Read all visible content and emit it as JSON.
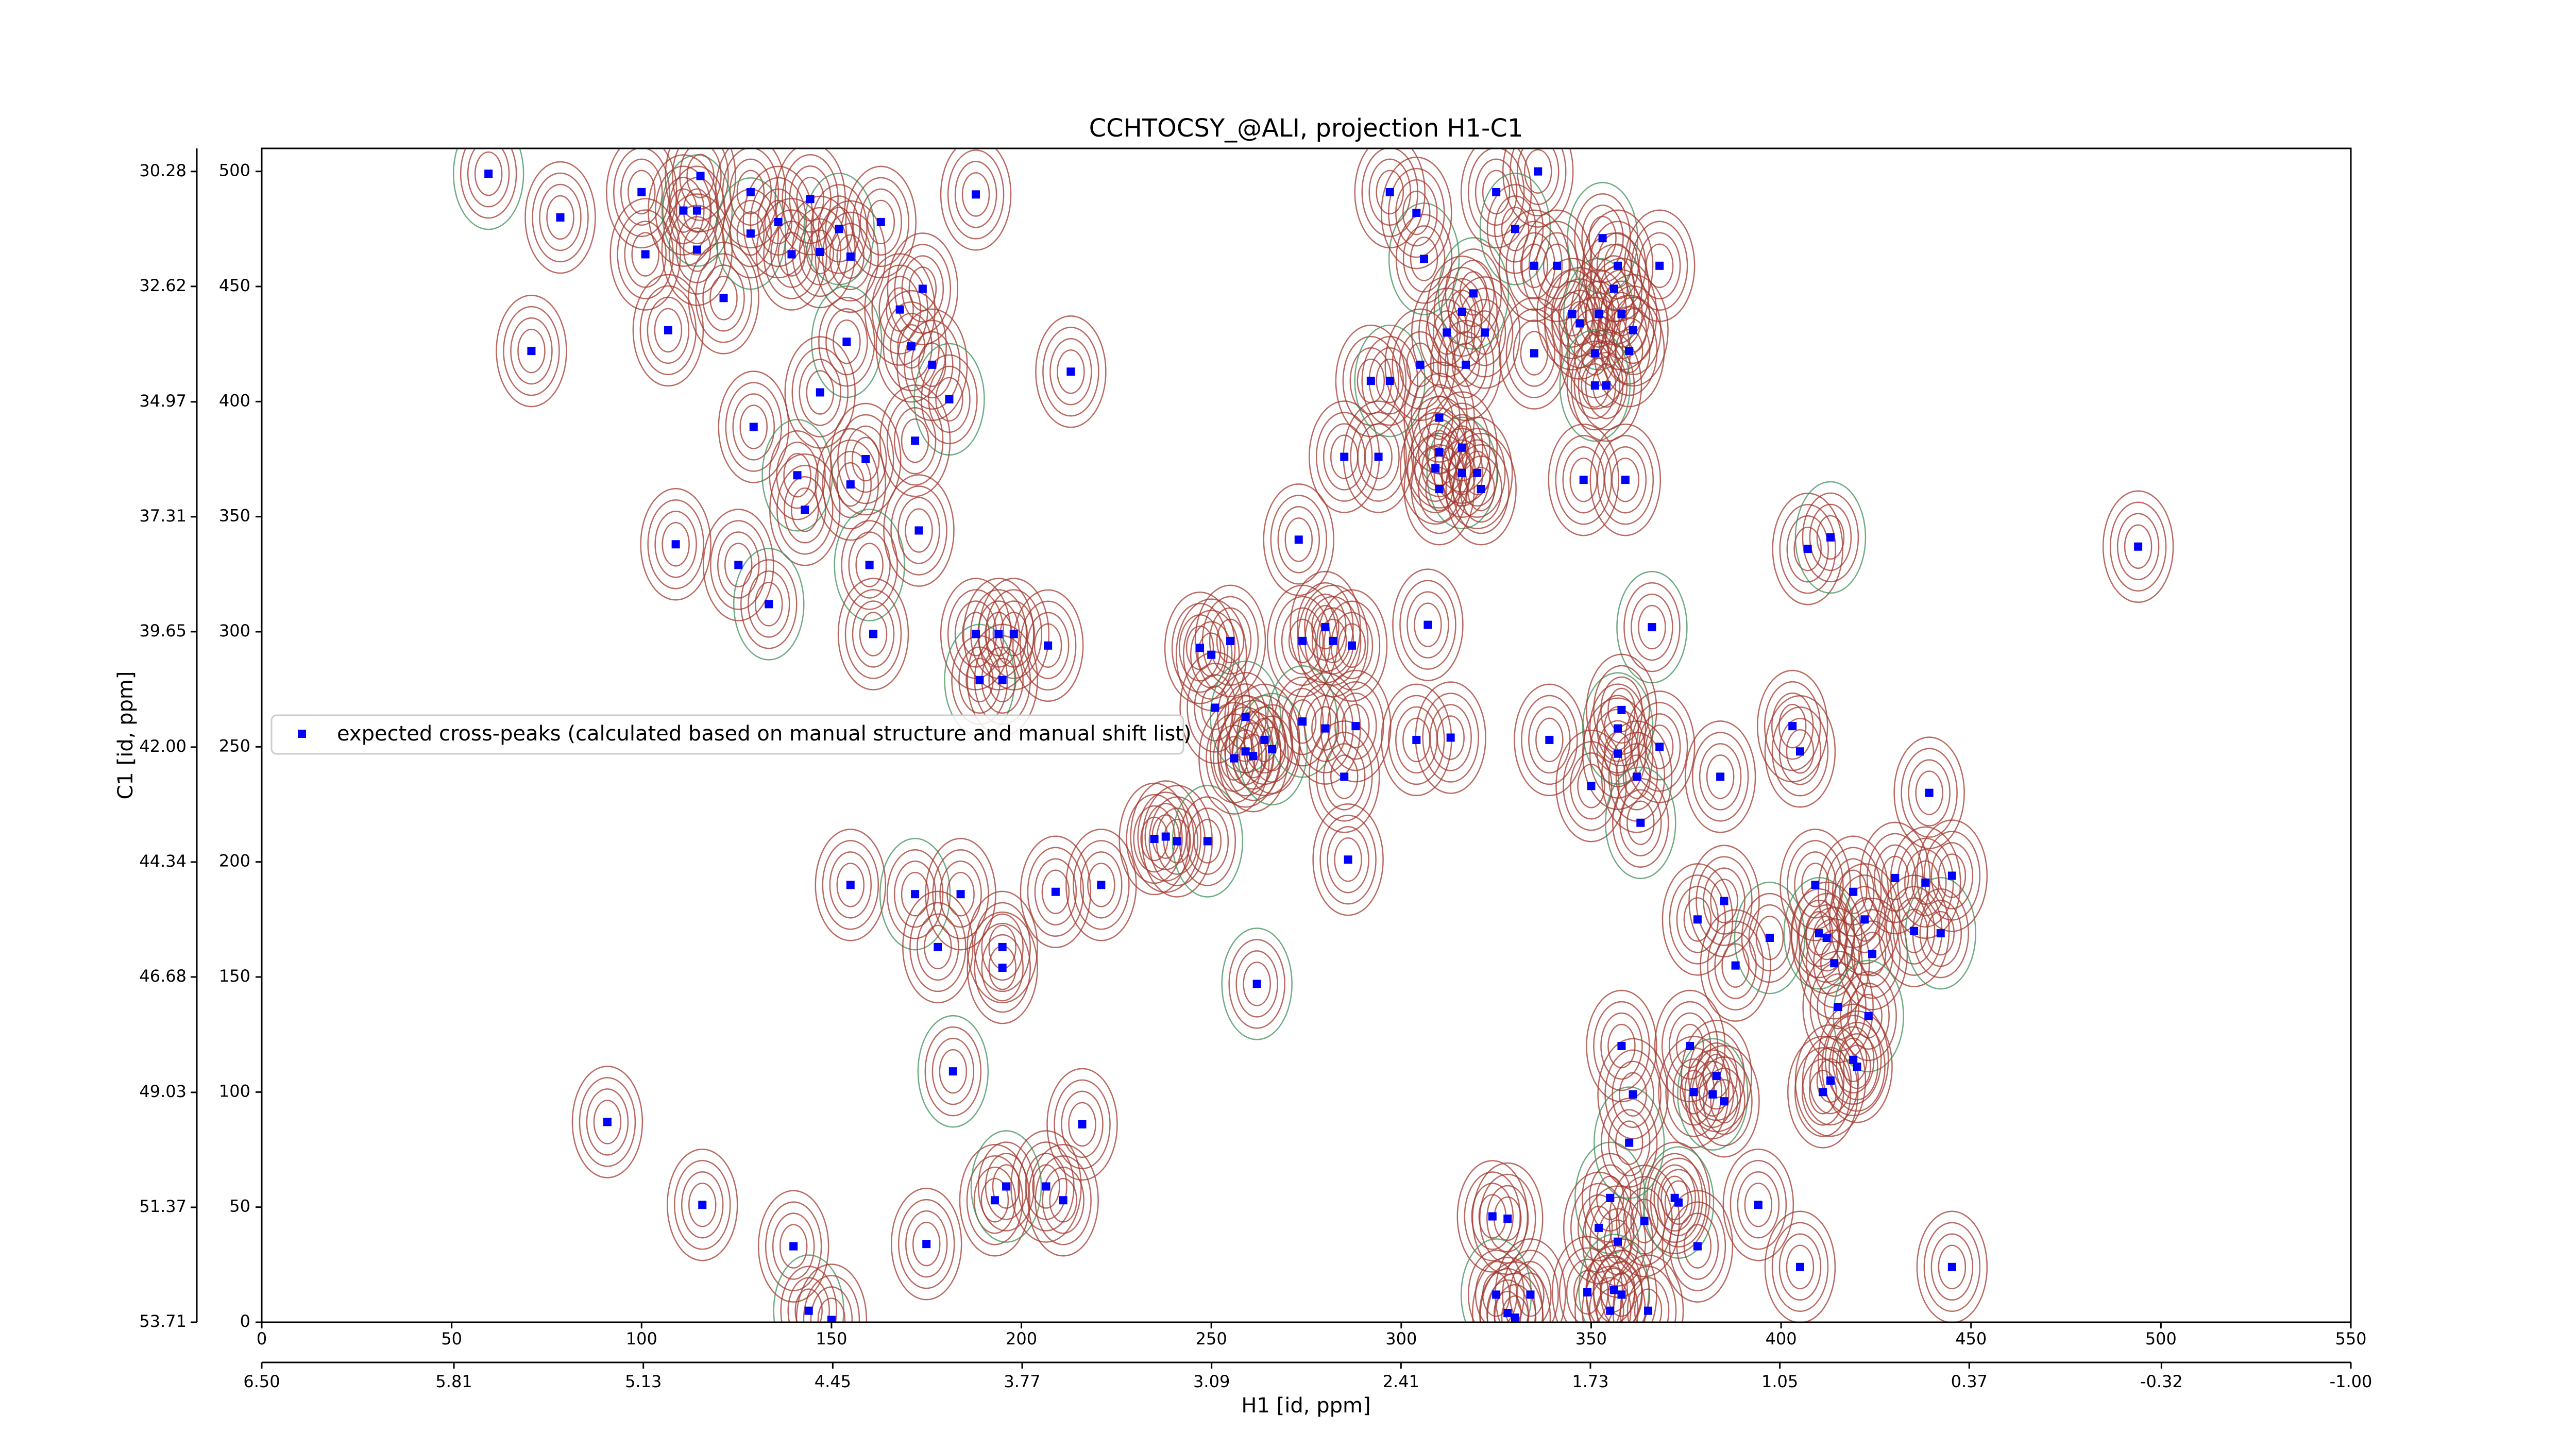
{
  "chart_data": {
    "type": "scatter",
    "title": "CCHTOCSY_@ALI, projection H1-C1",
    "xlabel": "H1 [id, ppm]",
    "ylabel": "C1 [id, ppm]",
    "xlim": [
      0,
      550
    ],
    "xticks": [
      0,
      50,
      100,
      150,
      200,
      250,
      300,
      350,
      400,
      450,
      500,
      550
    ],
    "ylim": [
      0,
      510
    ],
    "yticks": [
      0,
      50,
      100,
      150,
      200,
      250,
      300,
      350,
      400,
      450,
      500
    ],
    "x2lim": [
      6.5,
      -1.0
    ],
    "x2ticks": [
      {
        "value": 6.5,
        "label": "6.50"
      },
      5.81,
      5.13,
      4.45,
      3.77,
      3.09,
      2.41,
      1.73,
      1.05,
      0.37,
      -0.32,
      {
        "value": -1.0,
        "label": "-1.00"
      }
    ],
    "y2lim": [
      53.71,
      29.81
    ],
    "y2ticks": [
      53.71,
      51.37,
      49.03,
      46.68,
      44.34,
      {
        "value": 42.0,
        "label": "42.00"
      },
      39.65,
      37.31,
      34.97,
      32.62,
      30.28
    ],
    "legend": "center left",
    "series": [
      {
        "name": "expected cross-peaks (calculated based on manual structure and manual shift list)",
        "color": "#0000ff",
        "x": [
          59.7,
          78.6,
          100,
          101,
          111,
          114.6,
          114.6,
          115.5,
          121.6,
          128.7,
          128.7,
          136,
          139.5,
          144.4,
          147,
          152,
          155,
          163,
          71,
          107,
          154,
          168,
          171,
          174,
          176.5,
          181,
          188,
          213,
          147,
          129.5,
          141,
          143,
          155,
          159,
          172,
          160,
          173,
          161,
          109,
          125.5,
          133.5,
          188,
          194,
          198,
          207,
          189,
          195,
          209,
          221,
          155,
          172,
          184,
          178,
          195,
          195,
          182,
          216,
          91,
          116,
          193,
          196,
          206.5,
          211,
          140,
          175,
          144,
          150,
          235,
          238,
          241,
          249,
          247,
          250,
          255,
          251,
          259,
          256,
          259,
          261,
          264,
          266,
          274,
          280,
          282,
          287,
          274,
          280,
          288,
          285,
          286,
          262,
          273,
          285,
          294,
          292,
          297,
          305,
          312,
          317,
          316,
          319,
          322,
          316,
          310,
          309,
          316,
          320,
          321,
          310,
          310,
          306,
          297,
          304,
          325,
          336,
          330,
          335,
          341,
          335,
          345,
          352,
          351,
          347,
          356,
          358,
          353,
          357,
          360,
          361,
          368,
          351,
          354,
          348,
          359,
          307,
          366,
          304,
          313,
          339,
          350,
          357,
          358,
          357,
          362,
          368,
          363,
          384,
          378,
          385,
          388,
          397,
          409,
          403,
          405,
          407,
          413,
          439,
          494,
          419,
          422,
          410,
          412,
          424,
          430,
          435,
          442,
          445,
          438,
          414,
          415,
          423,
          419,
          420,
          411,
          413,
          355,
          364,
          352,
          357,
          372,
          373,
          378,
          394,
          405,
          445,
          360,
          361,
          358,
          376,
          377,
          382,
          385,
          383,
          324,
          328,
          325,
          328,
          330,
          334,
          349,
          356,
          358,
          355,
          365
        ],
        "values": [
          499,
          480,
          491,
          464,
          483,
          483,
          466,
          498,
          445,
          491,
          473,
          478,
          464,
          488,
          465,
          475,
          463,
          478,
          422,
          431,
          426,
          440,
          424,
          449,
          416,
          401,
          490,
          413,
          404,
          389,
          368,
          353,
          364,
          375,
          383,
          329,
          344,
          299,
          338,
          329,
          312,
          299,
          299,
          299,
          294,
          279,
          279,
          187,
          190,
          190,
          186,
          186,
          163,
          163,
          154,
          109,
          86,
          87,
          51,
          53,
          59,
          59,
          53,
          33,
          34,
          5,
          1,
          210,
          211,
          209,
          209,
          293,
          290,
          296,
          267,
          263,
          245,
          248,
          246,
          253,
          249,
          296,
          302,
          296,
          294,
          261,
          258,
          259,
          237,
          201,
          147,
          340,
          376,
          376,
          409,
          409,
          416,
          430,
          416,
          439,
          447,
          430,
          380,
          378,
          371,
          369,
          369,
          362,
          362,
          393,
          462,
          491,
          482,
          491,
          500,
          475,
          459,
          459,
          421,
          438,
          438,
          421,
          434,
          449,
          438,
          471,
          459,
          422,
          431,
          459,
          407,
          407,
          366,
          366,
          303,
          302,
          253,
          254,
          253,
          233,
          258,
          266,
          247,
          237,
          250,
          217,
          237,
          175,
          183,
          155,
          167,
          190,
          259,
          248,
          336,
          341,
          230,
          337,
          187,
          175,
          169,
          167,
          160,
          193,
          170,
          169,
          194,
          191,
          156,
          137,
          133,
          114,
          111,
          100,
          105,
          54,
          44,
          41,
          35,
          54,
          52,
          33,
          51,
          24,
          24,
          78,
          99,
          120,
          120,
          100,
          99,
          96,
          107,
          46,
          45,
          12,
          4,
          2,
          12,
          13,
          14,
          12,
          5,
          5
        ]
      }
    ]
  }
}
